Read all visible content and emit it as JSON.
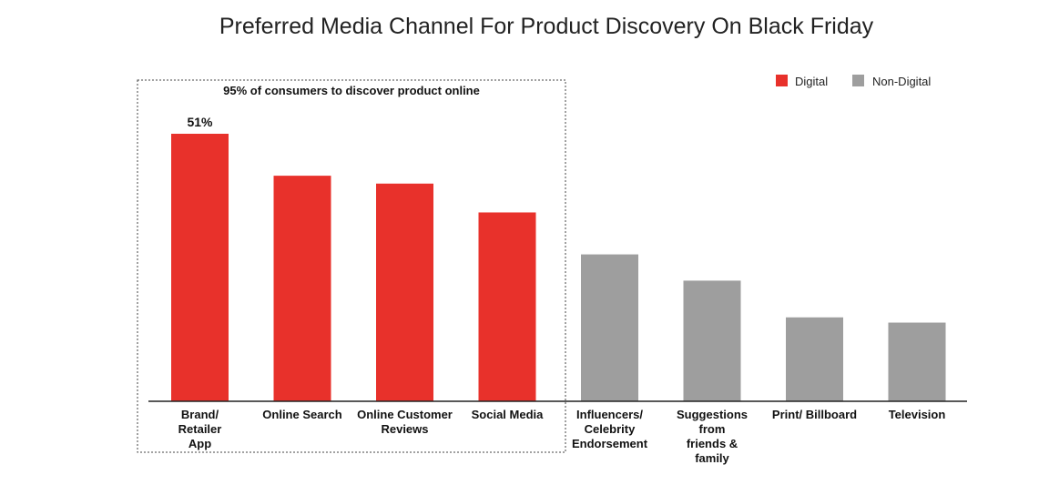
{
  "chart_data": {
    "type": "bar",
    "title": "Preferred Media Channel For Product Discovery On Black Friday",
    "xlabel": "",
    "ylabel": "",
    "ylim": [
      0,
      53
    ],
    "grid": false,
    "legend_position": "top-right",
    "categories": [
      [
        "Brand/",
        "Retailer",
        "App"
      ],
      [
        "Online Search"
      ],
      [
        "Online Customer",
        "Reviews"
      ],
      [
        "Social Media"
      ],
      [
        "Influencers/",
        "Celebrity",
        "Endorsement"
      ],
      [
        "Suggestions",
        "from",
        "friends &",
        "family"
      ],
      [
        "Print/ Billboard"
      ],
      [
        "Television"
      ]
    ],
    "values": [
      51,
      43,
      41.5,
      36,
      28,
      23,
      16,
      15
    ],
    "groups": [
      "Digital",
      "Digital",
      "Digital",
      "Digital",
      "Non-Digital",
      "Non-Digital",
      "Non-Digital",
      "Non-Digital"
    ],
    "data_labels": [
      "51%",
      "",
      "",
      "",
      "",
      "",
      "",
      ""
    ],
    "legend": [
      {
        "name": "Digital",
        "color": "#e8312b"
      },
      {
        "name": "Non-Digital",
        "color": "#9e9e9e"
      }
    ],
    "annotation": "95% of consumers to discover product online"
  }
}
